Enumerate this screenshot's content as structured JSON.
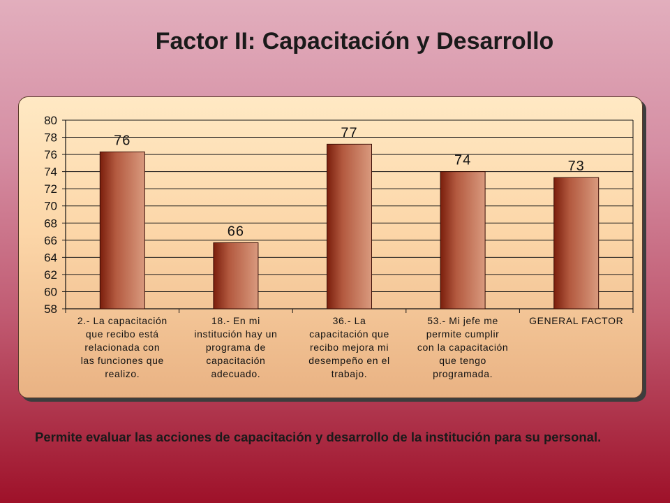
{
  "slide": {
    "title": "Factor II: Capacitación y Desarrollo",
    "description": "Permite evaluar las acciones de capacitación y desarrollo de la institución para su personal."
  },
  "chart_data": {
    "type": "bar",
    "categories": [
      [
        "2.- La capacitación",
        "que recibo está",
        "relacionada con",
        "las funciones que",
        "realizo."
      ],
      [
        "18.- En mi",
        "institución hay un",
        "programa de",
        "capacitación",
        "adecuado."
      ],
      [
        "36.- La",
        "capacitación que",
        "recibo mejora mi",
        "desempeño en el",
        "trabajo."
      ],
      [
        "53.- Mi jefe me",
        "permite cumplir",
        "con la capacitación",
        "que tengo",
        "programada."
      ],
      [
        "GENERAL FACTOR"
      ]
    ],
    "values": [
      76.3,
      65.7,
      77.2,
      74.0,
      73.3
    ],
    "data_labels": [
      "76",
      "66",
      "77",
      "74",
      "73"
    ],
    "ylim": [
      58,
      80
    ],
    "yticks": [
      80,
      78,
      76,
      74,
      72,
      70,
      68,
      66,
      64,
      62,
      60,
      58
    ],
    "title": "",
    "xlabel": "",
    "ylabel": "",
    "grid": true,
    "legend": "none",
    "colors": {
      "bar_dark": "#7a1e0c",
      "bar_light": "#d99a7e",
      "grid": "#1a1a1a",
      "frame_bg": "#fcd6a8"
    }
  }
}
